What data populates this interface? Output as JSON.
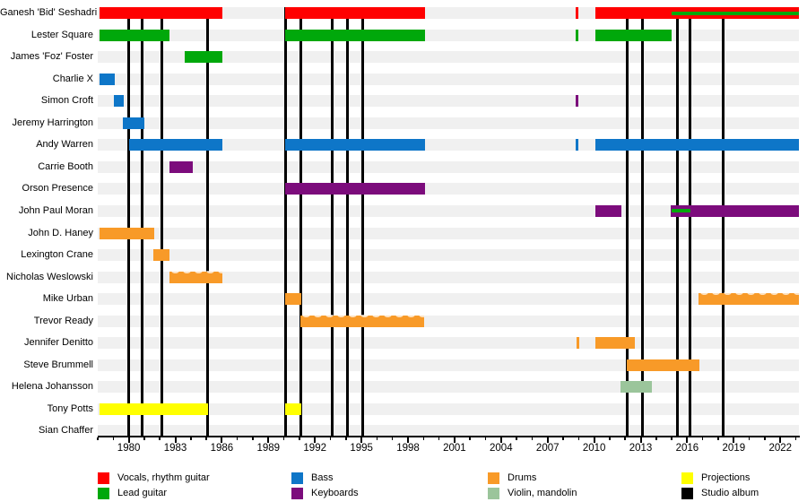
{
  "chart_data": {
    "type": "timeline",
    "subject": "Band members timeline (Gantt-style, Wikipedia EasyTimeline)",
    "x_axis": {
      "start_year": 1978,
      "end_year": 2023.2,
      "major_ticks": [
        1980,
        1983,
        1986,
        1989,
        1992,
        1995,
        1998,
        2001,
        2004,
        2007,
        2010,
        2013,
        2016,
        2019,
        2022
      ],
      "minor_tick_every": 1
    },
    "colors": {
      "vocals_rhythm_guitar": "#FF0000",
      "lead_guitar": "#00A80B",
      "bass": "#0E76C8",
      "keyboards": "#7C0C7C",
      "drums": "#F89A28",
      "violin_mandolin": "#9BC59B",
      "projections": "#FFFF00",
      "studio_album": "#000000",
      "row_band": "#F0F0F0"
    },
    "legend": [
      {
        "label": "Vocals, rhythm guitar",
        "role": "vocals_rhythm_guitar"
      },
      {
        "label": "Lead guitar",
        "role": "lead_guitar"
      },
      {
        "label": "Bass",
        "role": "bass"
      },
      {
        "label": "Keyboards",
        "role": "keyboards"
      },
      {
        "label": "Drums",
        "role": "drums"
      },
      {
        "label": "Violin, mandolin",
        "role": "violin_mandolin"
      },
      {
        "label": "Projections",
        "role": "projections"
      },
      {
        "label": "Studio album",
        "role": "studio_album"
      }
    ],
    "album_release_lines": [
      1980.0,
      1980.86,
      1982.12,
      1985.1,
      1990.1,
      1991.1,
      1993.1,
      1994.1,
      1995.1,
      2012.16,
      2013.13,
      2015.35,
      2016.17,
      2018.3
    ],
    "members": [
      {
        "name": "Ganesh 'Bid' Seshadri",
        "bars": [
          {
            "role": "vocals_rhythm_guitar",
            "from": 1978.1,
            "to": 1986.05
          },
          {
            "role": "vocals_rhythm_guitar",
            "from": 1990.08,
            "to": 1999.1
          },
          {
            "role": "vocals_rhythm_guitar",
            "from": 2008.82,
            "to": 2009.0
          },
          {
            "role": "vocals_rhythm_guitar",
            "from": 2010.1,
            "to": 2023.2
          }
        ],
        "overlay_bars": [
          {
            "role": "lead_guitar",
            "from": 2015.0,
            "to": 2023.2
          }
        ]
      },
      {
        "name": "Lester Square",
        "bars": [
          {
            "role": "lead_guitar",
            "from": 1978.1,
            "to": 1982.65
          },
          {
            "role": "lead_guitar",
            "from": 1990.08,
            "to": 1999.1
          },
          {
            "role": "lead_guitar",
            "from": 2008.82,
            "to": 2009.0
          },
          {
            "role": "lead_guitar",
            "from": 2010.1,
            "to": 2015.0
          }
        ],
        "overlay_bars": []
      },
      {
        "name": "James 'Foz' Foster",
        "bars": [
          {
            "role": "lead_guitar",
            "from": 1983.6,
            "to": 1986.05
          }
        ],
        "overlay_bars": []
      },
      {
        "name": "Charlie X",
        "bars": [
          {
            "role": "bass",
            "from": 1978.1,
            "to": 1979.1
          }
        ],
        "overlay_bars": []
      },
      {
        "name": "Simon Croft",
        "bars": [
          {
            "role": "bass",
            "from": 1979.05,
            "to": 1979.68
          },
          {
            "role": "keyboards",
            "from": 2008.82,
            "to": 2009.0
          }
        ],
        "overlay_bars": []
      },
      {
        "name": "Jeremy Harrington",
        "bars": [
          {
            "role": "bass",
            "from": 1979.6,
            "to": 1981.03
          }
        ],
        "overlay_bars": []
      },
      {
        "name": "Andy Warren",
        "bars": [
          {
            "role": "bass",
            "from": 1980.0,
            "to": 1986.05
          },
          {
            "role": "bass",
            "from": 1990.08,
            "to": 1999.1
          },
          {
            "role": "bass",
            "from": 2008.78,
            "to": 2008.96
          },
          {
            "role": "bass",
            "from": 2010.1,
            "to": 2023.2
          }
        ],
        "overlay_bars": []
      },
      {
        "name": "Carrie Booth",
        "bars": [
          {
            "role": "keyboards",
            "from": 1982.6,
            "to": 1984.1
          }
        ],
        "overlay_bars": []
      },
      {
        "name": "Orson Presence",
        "bars": [
          {
            "role": "keyboards",
            "from": 1990.08,
            "to": 1999.1
          }
        ],
        "overlay_bars": []
      },
      {
        "name": "John Paul Moran",
        "bars": [
          {
            "role": "keyboards",
            "from": 2010.1,
            "to": 2011.76
          },
          {
            "role": "keyboards",
            "from": 2014.95,
            "to": 2023.2
          }
        ],
        "overlay_bars": [
          {
            "role": "lead_guitar",
            "from": 2015.0,
            "to": 2016.2
          }
        ]
      },
      {
        "name": "John D. Haney",
        "bars": [
          {
            "role": "drums",
            "from": 1978.1,
            "to": 1981.67
          }
        ],
        "overlay_bars": []
      },
      {
        "name": "Lexington Crane",
        "bars": [
          {
            "role": "drums",
            "from": 1981.6,
            "to": 1982.65
          }
        ],
        "overlay_bars": []
      },
      {
        "name": "Nicholas Weslowski",
        "bars": [
          {
            "role": "drums",
            "from": 1982.6,
            "to": 1986.05,
            "fuzzy": true
          }
        ],
        "overlay_bars": []
      },
      {
        "name": "Mike Urban",
        "bars": [
          {
            "role": "drums",
            "from": 1990.08,
            "to": 1991.1
          },
          {
            "role": "drums",
            "from": 2016.72,
            "to": 2023.2,
            "fuzzy": true
          }
        ],
        "overlay_bars": []
      },
      {
        "name": "Trevor Ready",
        "bars": [
          {
            "role": "drums",
            "from": 1991.08,
            "to": 1999.05,
            "fuzzy": true
          }
        ],
        "overlay_bars": []
      },
      {
        "name": "Jennifer Denitto",
        "bars": [
          {
            "role": "drums",
            "from": 2008.85,
            "to": 2009.03
          },
          {
            "role": "drums",
            "from": 2010.1,
            "to": 2012.62
          }
        ],
        "overlay_bars": []
      },
      {
        "name": "Steve Brummell",
        "bars": [
          {
            "role": "drums",
            "from": 2012.1,
            "to": 2016.8
          }
        ],
        "overlay_bars": []
      },
      {
        "name": "Helena Johansson",
        "bars": [
          {
            "role": "violin_mandolin",
            "from": 2011.7,
            "to": 2013.72
          }
        ],
        "overlay_bars": []
      },
      {
        "name": "Tony Potts",
        "bars": [
          {
            "role": "projections",
            "from": 1978.1,
            "to": 1985.1
          },
          {
            "role": "projections",
            "from": 1990.08,
            "to": 1991.1
          }
        ],
        "overlay_bars": []
      },
      {
        "name": "Sian Chaffer",
        "bars": [],
        "overlay_bars": []
      }
    ]
  }
}
